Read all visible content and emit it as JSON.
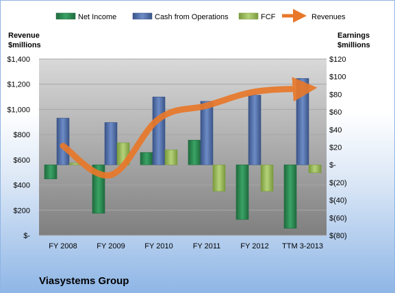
{
  "chart_data": {
    "type": "bar",
    "title": "",
    "company_label": "Viasystems Group",
    "categories": [
      "FY 2008",
      "FY 2009",
      "FY 2010",
      "FY 2011",
      "FY 2012",
      "TTM 3-2013"
    ],
    "left_axis": {
      "title_line1": "Revenue",
      "title_line2": "$millions",
      "range": [
        0,
        1400
      ],
      "ticks": [
        {
          "v": 0,
          "label": "$-"
        },
        {
          "v": 200,
          "label": "$200"
        },
        {
          "v": 400,
          "label": "$400"
        },
        {
          "v": 600,
          "label": "$600"
        },
        {
          "v": 800,
          "label": "$800"
        },
        {
          "v": 1000,
          "label": "$1,000"
        },
        {
          "v": 1200,
          "label": "$1,200"
        },
        {
          "v": 1400,
          "label": "$1,400"
        }
      ]
    },
    "right_axis": {
      "title_line1": "Earnings",
      "title_line2": "$millions",
      "range": [
        -80,
        120
      ],
      "ticks": [
        {
          "v": -80,
          "label": "$(80)"
        },
        {
          "v": -60,
          "label": "$(60)"
        },
        {
          "v": -40,
          "label": "$(40)"
        },
        {
          "v": -20,
          "label": "$(20)"
        },
        {
          "v": 0,
          "label": "$-"
        },
        {
          "v": 20,
          "label": "$20"
        },
        {
          "v": 40,
          "label": "$40"
        },
        {
          "v": 60,
          "label": "$60"
        },
        {
          "v": 80,
          "label": "$80"
        },
        {
          "v": 100,
          "label": "$100"
        },
        {
          "v": 120,
          "label": "$120"
        }
      ]
    },
    "grid": true,
    "legend_position": "top",
    "series": [
      {
        "name": "Net Income",
        "type": "bar",
        "axis": "right",
        "color": "#2e8b57",
        "values": [
          -16,
          -55,
          14,
          28,
          -62,
          -72
        ]
      },
      {
        "name": "Cash from Operations",
        "type": "bar",
        "axis": "right",
        "color": "#4f6fa8",
        "values": [
          53,
          48,
          77,
          72,
          79,
          98
        ]
      },
      {
        "name": "FCF",
        "type": "bar",
        "axis": "right",
        "color": "#9bbb59",
        "values": [
          2,
          25,
          17,
          -30,
          -30,
          -9
        ]
      },
      {
        "name": "Revenues",
        "type": "line",
        "axis": "left",
        "color": "#e8782a",
        "values": [
          710,
          480,
          925,
          1030,
          1140,
          1165
        ]
      }
    ]
  }
}
